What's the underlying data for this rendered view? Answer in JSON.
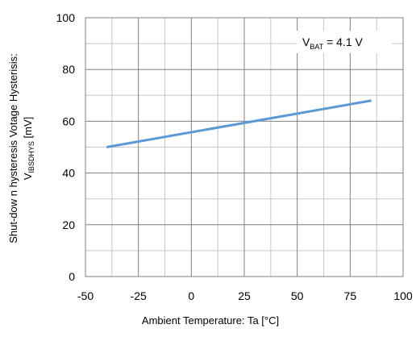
{
  "chart_data": {
    "type": "line",
    "title": "",
    "xlabel": "Ambient Temperature: Ta [°C]",
    "ylabel_line1": "Shut-dow n hysteresis Votage Hysterisis:",
    "ylabel_line2_main": "V",
    "ylabel_line2_sub": "IBSDHYS",
    "ylabel_line2_unit": " [mV]",
    "xlim": [
      -50,
      100
    ],
    "ylim": [
      0,
      100
    ],
    "xticks": [
      -50,
      -25,
      0,
      25,
      50,
      75,
      100
    ],
    "yticks": [
      0,
      20,
      40,
      60,
      80,
      100
    ],
    "xtick_labels": [
      "-50",
      "-25",
      "0",
      "25",
      "50",
      "75",
      "100"
    ],
    "ytick_labels": [
      "0",
      "20",
      "40",
      "60",
      "80",
      "100"
    ],
    "x_minor_gridlines": true,
    "y_minor_gridlines": true,
    "grid": true,
    "series": [
      {
        "color": "#5b9bd5",
        "x": [
          -40,
          85
        ],
        "y": [
          50,
          68
        ]
      }
    ],
    "annotation": {
      "main": "V",
      "sub": "BAT",
      "rest": " = 4.1 V",
      "position": "top-right"
    }
  }
}
